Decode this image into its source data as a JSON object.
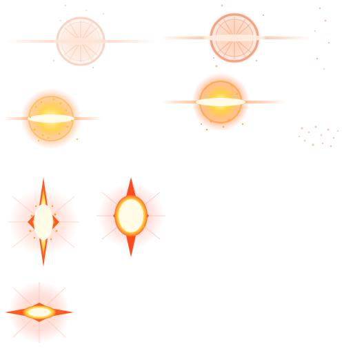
{
  "sprite_sheet": {
    "background": "#ffffff",
    "palette": {
      "core": "#fffbe6",
      "yellow": "#ffd23a",
      "orange": "#ff8a2a",
      "red_orange": "#ff5a1f",
      "ring": "#f2a07a",
      "glow": "#ffb48a"
    },
    "frames": [
      {
        "id": "frame-1",
        "icon": "faint-burst-ring-icon"
      },
      {
        "id": "frame-2",
        "icon": "burst-ring-flare-icon"
      },
      {
        "id": "frame-3",
        "icon": "burst-particles-flare-icon"
      },
      {
        "id": "frame-4",
        "icon": "burst-particles-flare-bright-icon"
      },
      {
        "id": "frame-5",
        "icon": "star-burst-particles-icon"
      },
      {
        "id": "frame-6",
        "icon": "star-burst-core-icon"
      },
      {
        "id": "frame-7",
        "icon": "star-burst-flat-icon"
      },
      {
        "id": "frame-8",
        "icon": "scatter-sparks-icon"
      }
    ]
  }
}
